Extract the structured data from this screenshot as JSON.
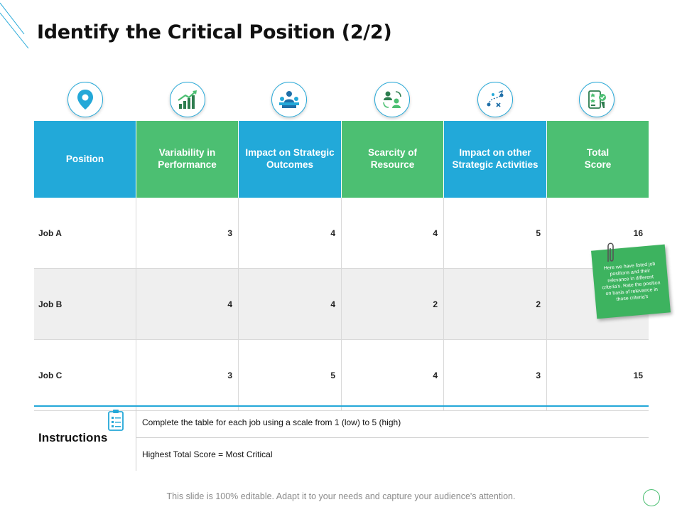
{
  "title": "Identify the Critical Position (2/2)",
  "icons": [
    "location-pin-icon",
    "growth-chart-icon",
    "team-meeting-icon",
    "people-exchange-icon",
    "strategy-play-icon",
    "rating-checklist-icon"
  ],
  "table": {
    "headers": [
      "Position",
      "Variability in\nPerformance",
      "Impact on Strategic\nOutcomes",
      "Scarcity of\nResource",
      "Impact on other\nStrategic Activities",
      "Total\nScore"
    ],
    "rows": [
      {
        "job": "Job A",
        "values": [
          "3",
          "4",
          "4",
          "5",
          "16"
        ]
      },
      {
        "job": "Job B",
        "values": [
          "4",
          "4",
          "2",
          "2",
          ""
        ]
      },
      {
        "job": "Job C",
        "values": [
          "3",
          "5",
          "4",
          "3",
          "15"
        ]
      }
    ]
  },
  "note": "Here we have listed job positions and their relevance in different criteria's. Rate the position on basis of relevance in those criteria's",
  "instructions": {
    "title": "Instructions",
    "line1": "Complete the table for each job using a scale from 1 (low) to 5 (high)",
    "line2": "Highest Total Score = Most Critical"
  },
  "footer": "This slide is 100% editable. Adapt it to your needs and capture your audience's attention.",
  "colors": {
    "blue": "#22a9d9",
    "green": "#4cbf72",
    "note": "#3db35f"
  }
}
